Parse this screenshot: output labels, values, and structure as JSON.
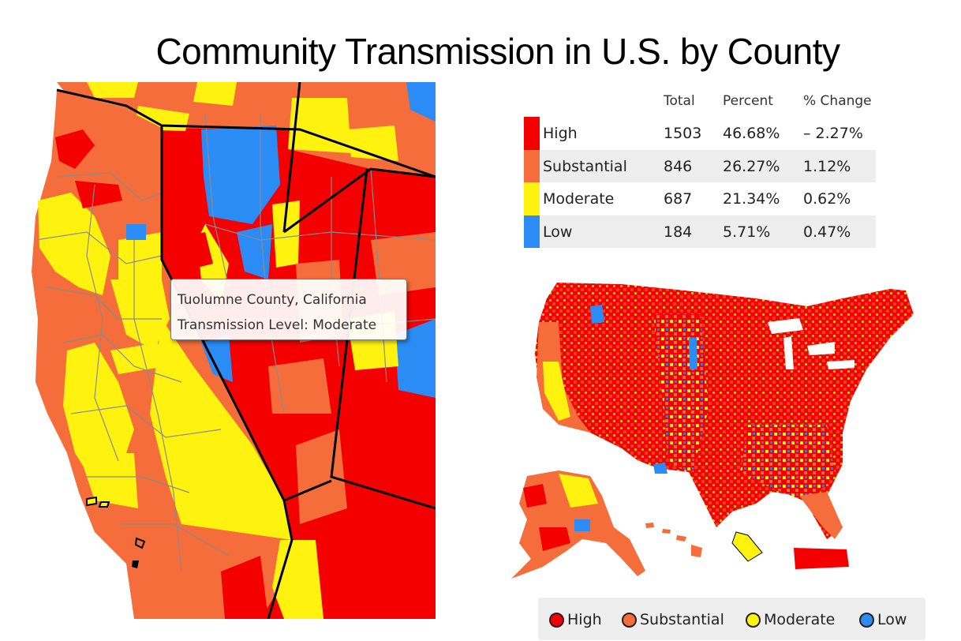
{
  "title": "Community Transmission in U.S. by County",
  "colors": {
    "high": "#f40000",
    "substantial": "#f46d3a",
    "moderate": "#fff20e",
    "low": "#2b8cf6"
  },
  "tooltip": {
    "line1": "Tuolumne County, California",
    "line2": "Transmission Level: Moderate"
  },
  "stats_table": {
    "headers": [
      "Total",
      "Percent",
      "% Change"
    ],
    "rows": [
      {
        "level": "High",
        "total": "1503",
        "percent": "46.68%",
        "change": "– 2.27%"
      },
      {
        "level": "Substantial",
        "total": "846",
        "percent": "26.27%",
        "change": "1.12%"
      },
      {
        "level": "Moderate",
        "total": "687",
        "percent": "21.34%",
        "change": "0.62%"
      },
      {
        "level": "Low",
        "total": "184",
        "percent": "5.71%",
        "change": "0.47%"
      }
    ]
  },
  "legend": [
    "High",
    "Substantial",
    "Moderate",
    "Low"
  ]
}
